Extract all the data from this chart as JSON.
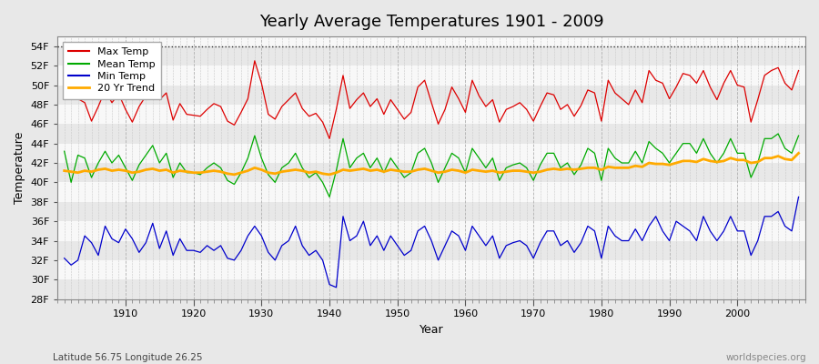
{
  "title": "Yearly Average Temperatures 1901 - 2009",
  "xlabel": "Year",
  "ylabel": "Temperature",
  "subtitle_left": "Latitude 56.75 Longitude 26.25",
  "subtitle_right": "worldspecies.org",
  "year_start": 1901,
  "year_end": 2009,
  "ylim": [
    28,
    55
  ],
  "yticks": [
    28,
    30,
    32,
    34,
    36,
    38,
    40,
    42,
    44,
    46,
    48,
    50,
    52,
    54
  ],
  "ytick_labels": [
    "28F",
    "30F",
    "32F",
    "34F",
    "36F",
    "38F",
    "40F",
    "42F",
    "44F",
    "46F",
    "48F",
    "50F",
    "52F",
    "54F"
  ],
  "xticks": [
    1910,
    1920,
    1930,
    1940,
    1950,
    1960,
    1970,
    1980,
    1990,
    2000
  ],
  "colors": {
    "max": "#dd0000",
    "mean": "#00aa00",
    "min": "#0000cc",
    "trend": "#ffaa00",
    "fig_bg": "#e8e8e8",
    "plot_bg_light": "#f8f8f8",
    "plot_bg_dark": "#e8e8e8",
    "grid_v": "#c8c8c8",
    "dotted_line": "#333333"
  },
  "legend_labels": [
    "Max Temp",
    "Mean Temp",
    "Min Temp",
    "20 Yr Trend"
  ],
  "max_temps": [
    50.0,
    49.1,
    48.6,
    48.2,
    46.3,
    47.8,
    49.5,
    48.2,
    49.1,
    47.5,
    46.2,
    47.8,
    48.9,
    49.8,
    48.5,
    49.2,
    46.4,
    48.1,
    47.0,
    46.9,
    46.8,
    47.5,
    48.1,
    47.8,
    46.3,
    45.9,
    47.2,
    48.6,
    52.5,
    50.2,
    47.0,
    46.5,
    47.8,
    48.5,
    49.2,
    47.6,
    46.8,
    47.1,
    46.2,
    44.5,
    47.5,
    51.0,
    47.6,
    48.5,
    49.2,
    47.8,
    48.6,
    47.0,
    48.5,
    47.5,
    46.5,
    47.2,
    49.8,
    50.5,
    48.2,
    46.0,
    47.5,
    49.8,
    48.6,
    47.2,
    50.5,
    48.9,
    47.8,
    48.5,
    46.2,
    47.5,
    47.8,
    48.2,
    47.5,
    46.3,
    47.8,
    49.2,
    49.0,
    47.5,
    48.0,
    46.8,
    47.9,
    49.5,
    49.2,
    46.3,
    50.5,
    49.2,
    48.6,
    48.0,
    49.5,
    48.2,
    51.5,
    50.5,
    50.2,
    48.6,
    49.8,
    51.2,
    51.0,
    50.2,
    51.5,
    49.8,
    48.5,
    50.2,
    51.5,
    50.0,
    49.8,
    46.2,
    48.5,
    51.0,
    51.5,
    51.8,
    50.2,
    49.5,
    51.5
  ],
  "mean_temps": [
    43.2,
    40.0,
    42.8,
    42.5,
    40.5,
    42.0,
    43.2,
    42.0,
    42.8,
    41.5,
    40.2,
    41.8,
    42.8,
    43.8,
    42.0,
    43.0,
    40.5,
    42.0,
    41.0,
    41.0,
    40.8,
    41.5,
    42.0,
    41.5,
    40.2,
    39.8,
    41.0,
    42.5,
    44.8,
    42.5,
    40.8,
    40.0,
    41.5,
    42.0,
    43.0,
    41.5,
    40.5,
    41.0,
    40.0,
    38.5,
    41.2,
    44.5,
    41.5,
    42.5,
    43.0,
    41.5,
    42.5,
    41.0,
    42.5,
    41.5,
    40.5,
    41.0,
    43.0,
    43.5,
    42.0,
    40.0,
    41.5,
    43.0,
    42.5,
    41.0,
    43.5,
    42.5,
    41.5,
    42.5,
    40.2,
    41.5,
    41.8,
    42.0,
    41.5,
    40.2,
    41.8,
    43.0,
    43.0,
    41.5,
    42.0,
    40.8,
    41.8,
    43.5,
    43.0,
    40.2,
    43.5,
    42.5,
    42.0,
    42.0,
    43.2,
    42.0,
    44.2,
    43.5,
    43.0,
    42.0,
    43.0,
    44.0,
    44.0,
    43.0,
    44.5,
    43.0,
    42.0,
    43.0,
    44.5,
    43.0,
    43.0,
    40.5,
    42.0,
    44.5,
    44.5,
    45.0,
    43.5,
    43.0,
    44.8
  ],
  "min_temps": [
    32.2,
    31.5,
    32.0,
    34.5,
    33.8,
    32.5,
    35.5,
    34.2,
    33.8,
    35.2,
    34.2,
    32.8,
    33.8,
    35.8,
    33.2,
    35.0,
    32.5,
    34.2,
    33.0,
    33.0,
    32.8,
    33.5,
    33.0,
    33.5,
    32.2,
    32.0,
    33.0,
    34.5,
    35.5,
    34.5,
    32.8,
    32.0,
    33.5,
    34.0,
    35.5,
    33.5,
    32.5,
    33.0,
    32.0,
    29.5,
    29.2,
    36.5,
    34.0,
    34.5,
    36.0,
    33.5,
    34.5,
    33.0,
    34.5,
    33.5,
    32.5,
    33.0,
    35.0,
    35.5,
    34.0,
    32.0,
    33.5,
    35.0,
    34.5,
    33.0,
    35.5,
    34.5,
    33.5,
    34.5,
    32.2,
    33.5,
    33.8,
    34.0,
    33.5,
    32.2,
    33.8,
    35.0,
    35.0,
    33.5,
    34.0,
    32.8,
    33.8,
    35.5,
    35.0,
    32.2,
    35.5,
    34.5,
    34.0,
    34.0,
    35.2,
    34.0,
    35.5,
    36.5,
    35.0,
    34.0,
    36.0,
    35.5,
    35.0,
    34.0,
    36.5,
    35.0,
    34.0,
    35.0,
    36.5,
    35.0,
    35.0,
    32.5,
    34.0,
    36.5,
    36.5,
    37.0,
    35.5,
    35.0,
    38.5
  ],
  "trend_temps": [
    41.2,
    41.1,
    41.0,
    41.2,
    41.1,
    41.3,
    41.4,
    41.2,
    41.3,
    41.2,
    41.0,
    41.1,
    41.3,
    41.4,
    41.2,
    41.3,
    41.0,
    41.2,
    41.1,
    41.0,
    41.0,
    41.1,
    41.2,
    41.1,
    40.9,
    40.8,
    41.0,
    41.2,
    41.5,
    41.3,
    41.0,
    40.9,
    41.1,
    41.2,
    41.3,
    41.2,
    41.0,
    41.1,
    40.9,
    40.8,
    41.0,
    41.3,
    41.2,
    41.3,
    41.4,
    41.2,
    41.3,
    41.1,
    41.3,
    41.2,
    41.1,
    41.1,
    41.3,
    41.4,
    41.2,
    41.0,
    41.1,
    41.3,
    41.2,
    41.0,
    41.3,
    41.2,
    41.1,
    41.2,
    41.0,
    41.1,
    41.2,
    41.2,
    41.1,
    41.0,
    41.1,
    41.3,
    41.4,
    41.3,
    41.4,
    41.3,
    41.4,
    41.5,
    41.5,
    41.3,
    41.6,
    41.5,
    41.5,
    41.5,
    41.7,
    41.6,
    42.0,
    41.9,
    41.9,
    41.8,
    42.0,
    42.2,
    42.2,
    42.1,
    42.4,
    42.2,
    42.1,
    42.2,
    42.5,
    42.3,
    42.3,
    42.0,
    42.1,
    42.5,
    42.5,
    42.7,
    42.4,
    42.3,
    43.0
  ]
}
